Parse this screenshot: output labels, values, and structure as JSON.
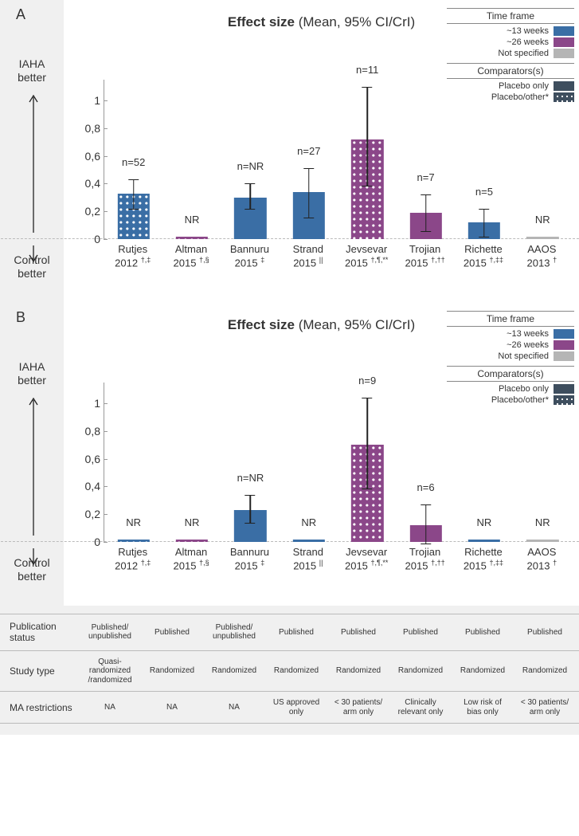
{
  "colors": {
    "blue": "#3a6ea5",
    "purple": "#8b4789",
    "gray": "#b5b5b5",
    "darkbox": "#3e4e5e",
    "bg_strip": "#f0f0f0"
  },
  "legend": {
    "timeframe_header": "Time frame",
    "timeframe_items": [
      {
        "label": "~13 weeks",
        "color": "#3a6ea5"
      },
      {
        "label": "~26 weeks",
        "color": "#8b4789"
      },
      {
        "label": "Not specified",
        "color": "#b5b5b5"
      }
    ],
    "comparators_header": "Comparators(s)",
    "comparators_items": [
      {
        "label": "Placebo only",
        "pattern": "solid"
      },
      {
        "label": "Placebo/other*",
        "pattern": "dots"
      }
    ]
  },
  "yaxis": {
    "ticks": [
      0,
      0.2,
      0.4,
      0.6,
      0.8,
      1
    ],
    "labels": [
      "0",
      "0,2",
      "0,4",
      "0,6",
      "0,8",
      "1"
    ],
    "ymax": 1.15
  },
  "ylabels": {
    "upper1": "IAHA",
    "upper2": "better",
    "lower1": "Control",
    "lower2": "better"
  },
  "title_html": "<b>Effect size</b> (Mean, 95% CI/CrI)",
  "panels": [
    {
      "id": "A",
      "bars": [
        {
          "name": "Rutjes 2012",
          "sup": "†,‡",
          "n": "n=52",
          "value": 0.33,
          "lo": 0.21,
          "hi": 0.43,
          "color": "#3a6ea5",
          "dots": true
        },
        {
          "name": "Altman 2015",
          "sup": "†,§",
          "n": "NR",
          "value": 0.02,
          "lo": null,
          "hi": null,
          "color": "#8b4789",
          "dots": true
        },
        {
          "name": "Bannuru 2015",
          "sup": "‡",
          "n": "n=NR",
          "value": 0.3,
          "lo": 0.21,
          "hi": 0.4,
          "color": "#3a6ea5",
          "dots": false
        },
        {
          "name": "Strand 2015",
          "sup": "||",
          "n": "n=27",
          "value": 0.34,
          "lo": 0.15,
          "hi": 0.51,
          "color": "#3a6ea5",
          "dots": false
        },
        {
          "name": "Jevsevar 2015",
          "sup": "†,¶,**",
          "n": "n=11",
          "value": 0.72,
          "lo": 0.38,
          "hi": 1.1,
          "color": "#8b4789",
          "dots": true
        },
        {
          "name": "Trojian 2015",
          "sup": "†,††",
          "n": "n=7",
          "value": 0.19,
          "lo": 0.05,
          "hi": 0.32,
          "color": "#8b4789",
          "dots": false
        },
        {
          "name": "Richette 2015",
          "sup": "†,‡‡",
          "n": "n=5",
          "value": 0.12,
          "lo": 0.01,
          "hi": 0.22,
          "color": "#3a6ea5",
          "dots": false
        },
        {
          "name": "AAOS 2013",
          "sup": "†",
          "n": "NR",
          "value": 0.02,
          "lo": null,
          "hi": null,
          "color": "#b5b5b5",
          "dots": false
        }
      ]
    },
    {
      "id": "B",
      "bars": [
        {
          "name": "Rutjes 2012",
          "sup": "†,‡",
          "n": "NR",
          "value": 0.02,
          "lo": null,
          "hi": null,
          "color": "#3a6ea5",
          "dots": true
        },
        {
          "name": "Altman 2015",
          "sup": "†,§",
          "n": "NR",
          "value": 0.02,
          "lo": null,
          "hi": null,
          "color": "#8b4789",
          "dots": true
        },
        {
          "name": "Bannuru 2015",
          "sup": "‡",
          "n": "n=NR",
          "value": 0.23,
          "lo": 0.13,
          "hi": 0.34,
          "color": "#3a6ea5",
          "dots": false
        },
        {
          "name": "Strand 2015",
          "sup": "||",
          "n": "NR",
          "value": 0.02,
          "lo": null,
          "hi": null,
          "color": "#3a6ea5",
          "dots": false
        },
        {
          "name": "Jevsevar 2015",
          "sup": "†,¶,**",
          "n": "n=9",
          "value": 0.7,
          "lo": 0.38,
          "hi": 1.04,
          "color": "#8b4789",
          "dots": true
        },
        {
          "name": "Trojian 2015",
          "sup": "†,††",
          "n": "n=6",
          "value": 0.12,
          "lo": -0.02,
          "hi": 0.27,
          "color": "#8b4789",
          "dots": false
        },
        {
          "name": "Richette 2015",
          "sup": "†,‡‡",
          "n": "NR",
          "value": 0.02,
          "lo": null,
          "hi": null,
          "color": "#3a6ea5",
          "dots": false
        },
        {
          "name": "AAOS 2013",
          "sup": "†",
          "n": "NR",
          "value": 0.02,
          "lo": null,
          "hi": null,
          "color": "#b5b5b5",
          "dots": false
        }
      ]
    }
  ],
  "table": {
    "rows": [
      {
        "header": "Publication status",
        "cells": [
          "Published/\nunpublished",
          "Published",
          "Published/\nunpublished",
          "Published",
          "Published",
          "Published",
          "Published",
          "Published"
        ]
      },
      {
        "header": "Study type",
        "cells": [
          "Quasi-\nrandomized\n/randomized",
          "Randomized",
          "Randomized",
          "Randomized",
          "Randomized",
          "Randomized",
          "Randomized",
          "Randomized"
        ]
      },
      {
        "header": "MA restrictions",
        "cells": [
          "NA",
          "NA",
          "NA",
          "US approved\nonly",
          "< 30 patients/\narm only",
          "Clinically\nrelevant only",
          "Low risk of\nbias only",
          "< 30 patients/\narm only"
        ]
      }
    ]
  }
}
